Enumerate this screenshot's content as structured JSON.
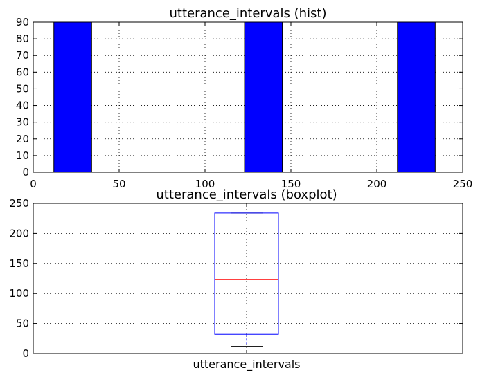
{
  "chart_data": [
    {
      "type": "bar",
      "subtype": "histogram",
      "title": "utterance_intervals (hist)",
      "xlim": [
        0,
        250
      ],
      "ylim": [
        0,
        90
      ],
      "xticks": [
        0,
        50,
        100,
        150,
        200,
        250
      ],
      "yticks": [
        0,
        10,
        20,
        30,
        40,
        50,
        60,
        70,
        80,
        90
      ],
      "grid": true,
      "bar_color": "#0000ff",
      "bins": [
        {
          "start": 12,
          "end": 34,
          "count": 90
        },
        {
          "start": 123,
          "end": 145,
          "count": 90
        },
        {
          "start": 212,
          "end": 234,
          "count": 90
        }
      ]
    },
    {
      "type": "boxplot",
      "title": "utterance_intervals (boxplot)",
      "categories": [
        "utterance_intervals"
      ],
      "ylim": [
        0,
        250
      ],
      "yticks": [
        0,
        50,
        100,
        150,
        200,
        250
      ],
      "grid": true,
      "box_color": "#0000ff",
      "median_color": "#ff0000",
      "stats": {
        "whisker_low": 12,
        "q1": 32,
        "median": 123,
        "q3": 234,
        "whisker_high": 234
      }
    }
  ]
}
